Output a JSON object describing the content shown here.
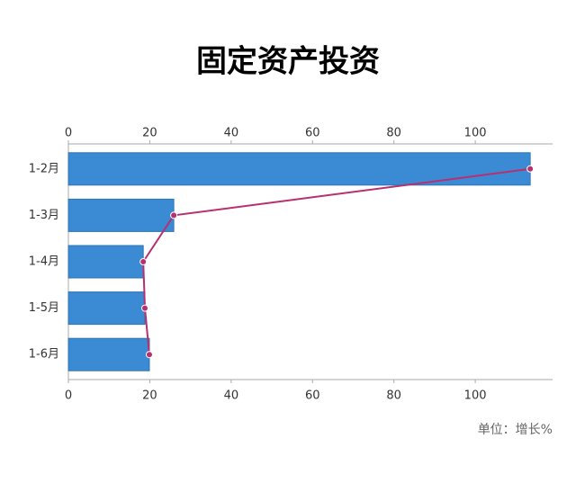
{
  "chart_data": {
    "type": "bar",
    "orientation": "horizontal",
    "title": "固定资产投资",
    "categories": [
      "1-2月",
      "1-3月",
      "1-4月",
      "1-5月",
      "1-6月"
    ],
    "series": [
      {
        "type": "bar",
        "color": "#3a8ad4",
        "values": [
          113.5,
          25.9,
          18.4,
          18.8,
          19.9
        ]
      },
      {
        "type": "line",
        "color": "#b8306e",
        "values": [
          113.5,
          25.9,
          18.4,
          18.8,
          19.9
        ]
      }
    ],
    "xlim": [
      0,
      119
    ],
    "xticks": [
      0,
      20,
      40,
      60,
      80,
      100
    ],
    "annotation": "单位：增长%"
  }
}
